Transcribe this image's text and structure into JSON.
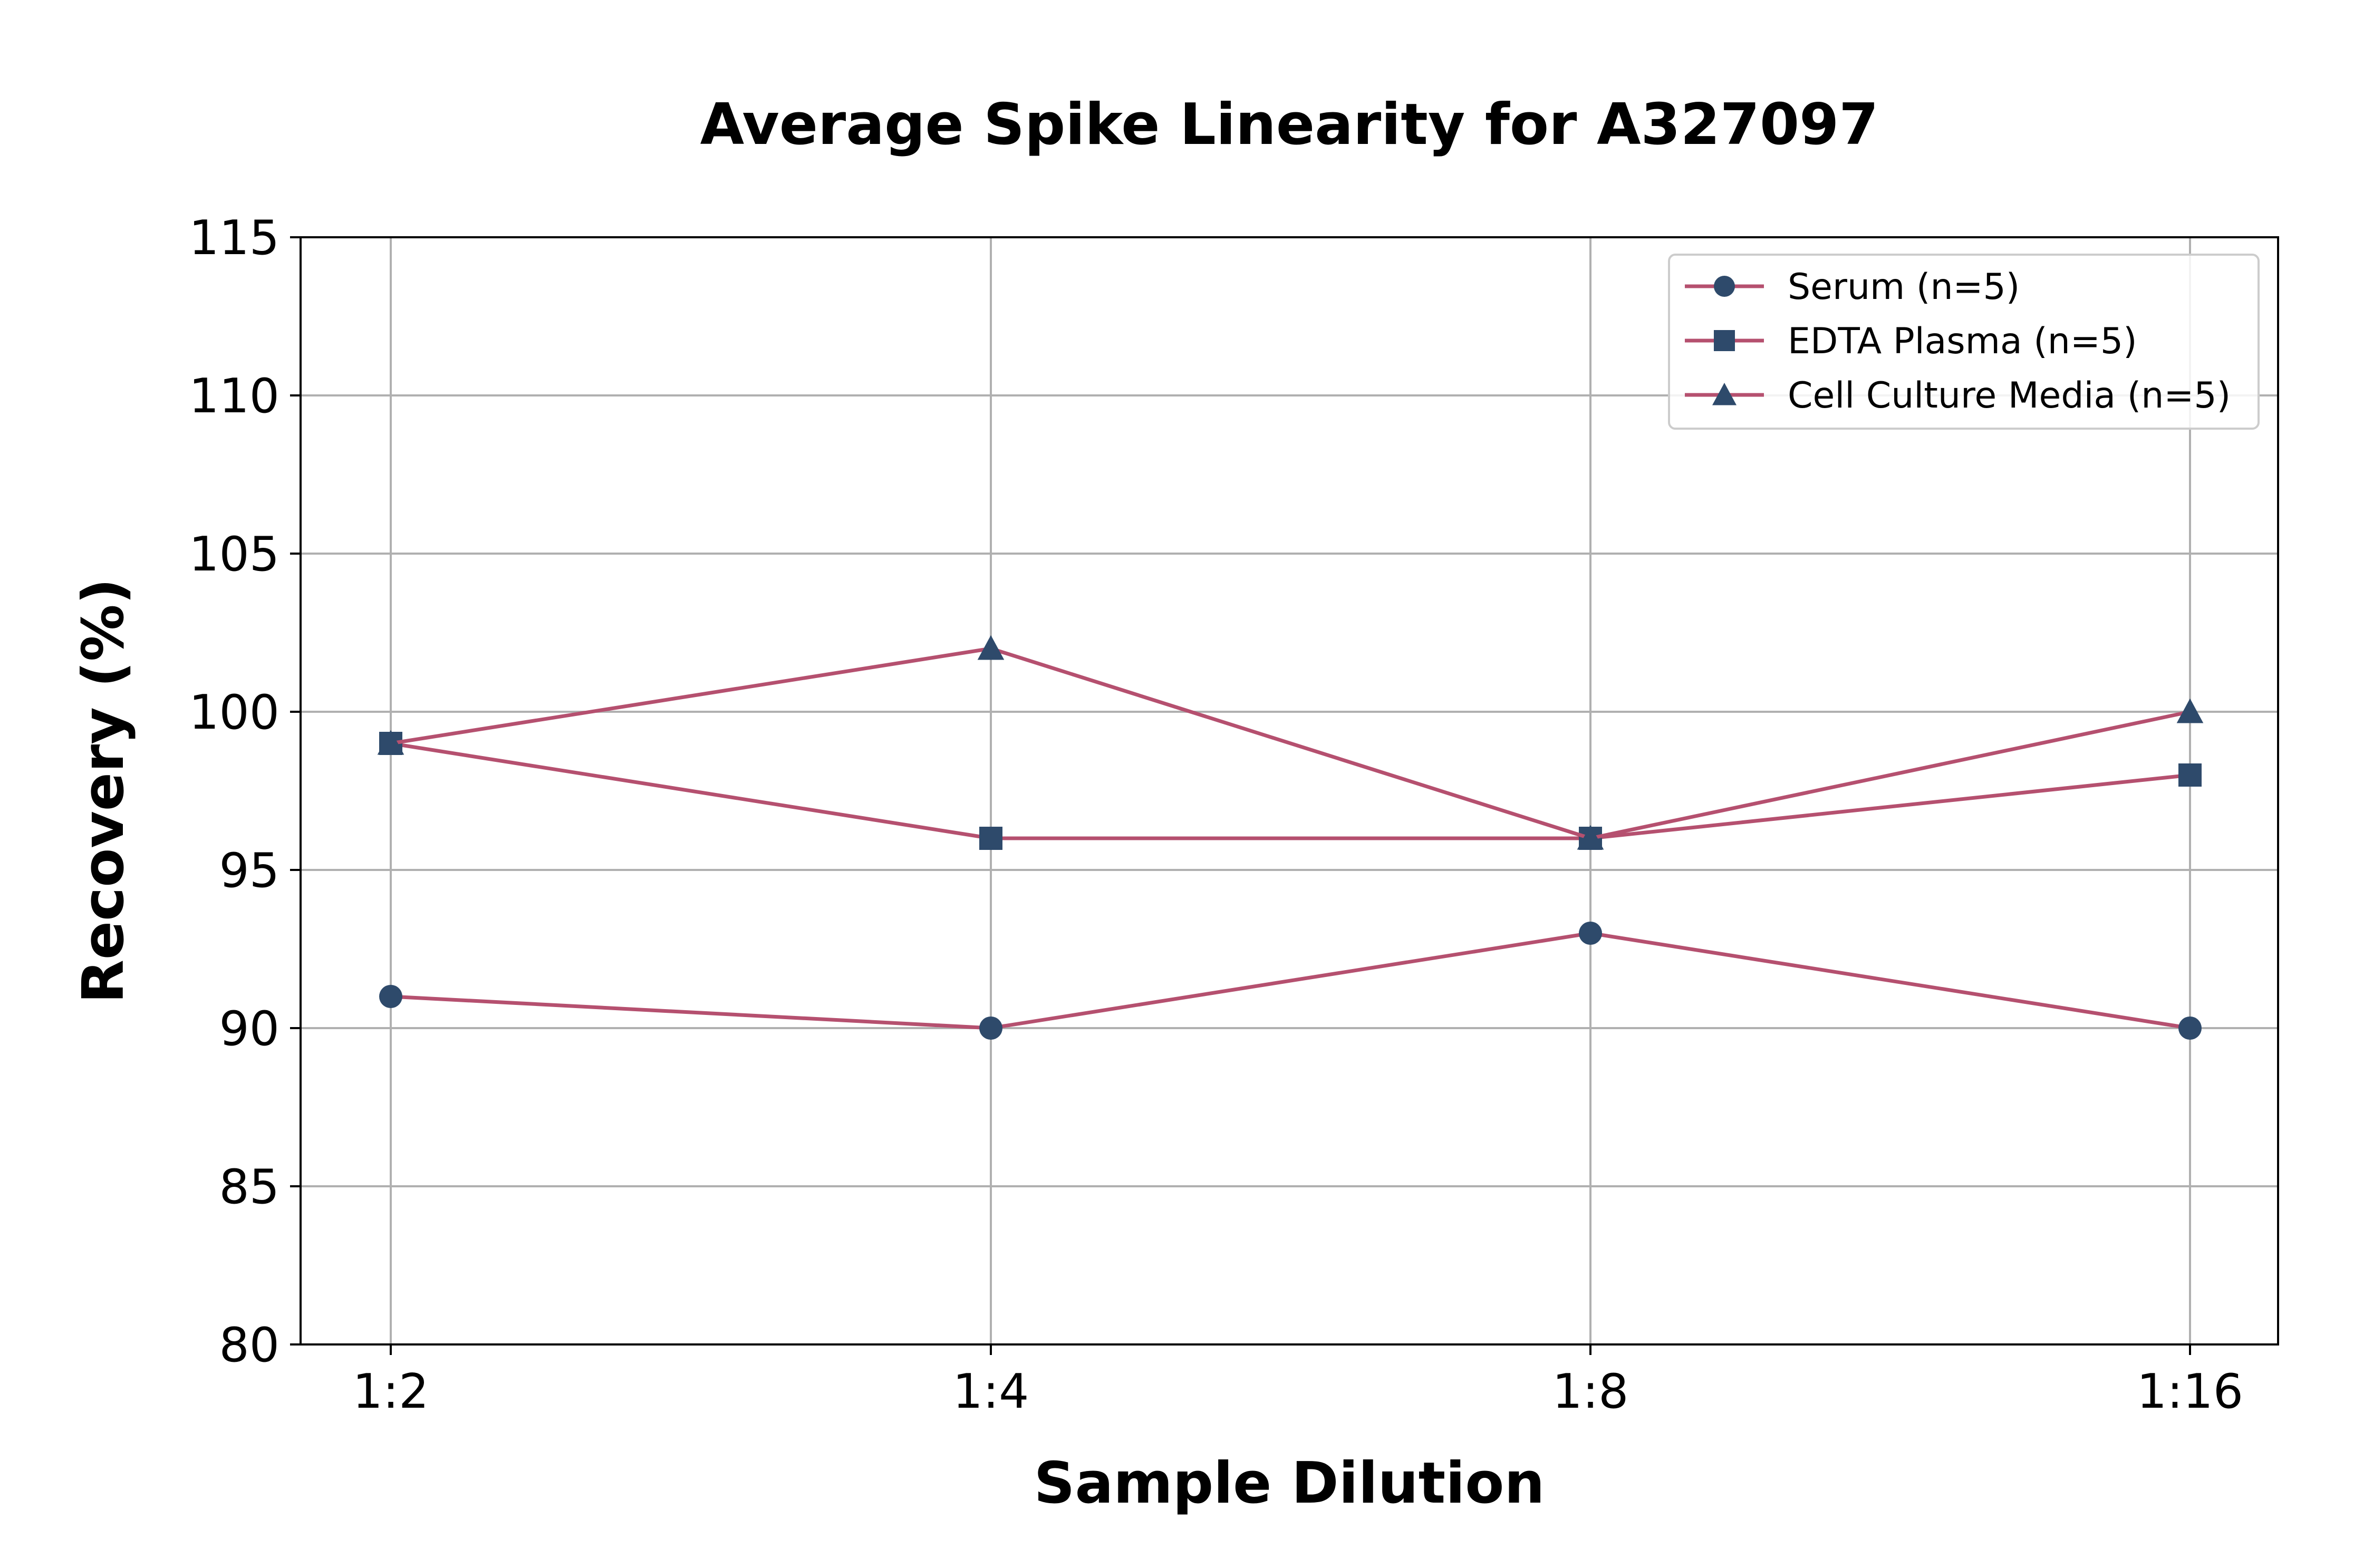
{
  "chart_data": {
    "type": "line",
    "title": "Average Spike Linearity for A327097",
    "xlabel": "Sample Dilution",
    "ylabel": "Recovery (%)",
    "categories": [
      "1:2",
      "1:4",
      "1:8",
      "1:16"
    ],
    "ylim": [
      80,
      115
    ],
    "yticks": [
      80,
      85,
      90,
      95,
      100,
      105,
      110,
      115
    ],
    "grid": true,
    "legend_position": "top-right",
    "line_color": "#b5506f",
    "marker_color": "#2e4a6b",
    "series": [
      {
        "name": "Serum (n=5)",
        "marker": "circle",
        "values": [
          91,
          90,
          93,
          90
        ]
      },
      {
        "name": "EDTA Plasma (n=5)",
        "marker": "square",
        "values": [
          99,
          96,
          96,
          98
        ]
      },
      {
        "name": "Cell Culture Media (n=5)",
        "marker": "triangle",
        "values": [
          99,
          102,
          96,
          100
        ]
      }
    ]
  }
}
